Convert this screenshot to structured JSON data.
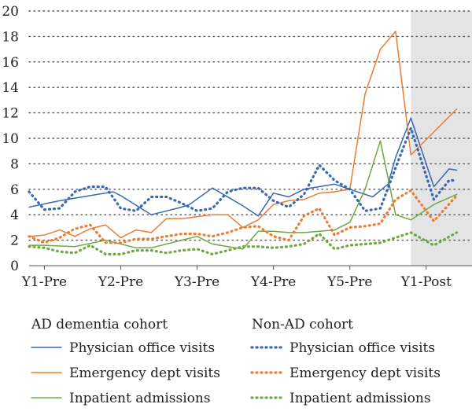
{
  "chart_data": {
    "type": "line",
    "y_ticks": [
      "0",
      "2",
      "4",
      "6",
      "8",
      "10",
      "12",
      "14",
      "16",
      "18",
      "20"
    ],
    "ylim": [
      0,
      20
    ],
    "grid": "horizontal dotted",
    "x_tick_labels": [
      "Y1-Pre",
      "Y2-Pre",
      "Y3-Pre",
      "Y4-Pre",
      "Y5-Pre",
      "Y1-Post"
    ],
    "x_tick_positions": [
      2,
      12,
      22,
      32,
      42,
      52
    ],
    "x_range": [
      0,
      58
    ],
    "shaded_region": [
      50,
      58
    ],
    "legend": {
      "groups": [
        {
          "name": "AD dementia cohort"
        },
        {
          "name": "Non-AD cohort"
        }
      ]
    },
    "series": [
      {
        "name": "Physician office visits",
        "group": "AD dementia cohort",
        "color": "#3a67b4",
        "style": "solid",
        "x": [
          0,
          4,
          8,
          11,
          12,
          16,
          20,
          21,
          24,
          28,
          30,
          32,
          34,
          36,
          40,
          42,
          45,
          47,
          48,
          50,
          53,
          55,
          56
        ],
        "y": [
          4.6,
          5.1,
          5.5,
          5.8,
          5.5,
          4.0,
          4.6,
          4.8,
          6.1,
          4.7,
          3.9,
          5.7,
          5.4,
          6.0,
          6.4,
          6.0,
          5.4,
          6.4,
          8.5,
          11.6,
          6.2,
          7.6,
          7.5
        ]
      },
      {
        "name": "Emergency dept visits",
        "group": "AD dementia cohort",
        "color": "#ec7d31",
        "style": "solid",
        "x": [
          0,
          2,
          4,
          6,
          8,
          10,
          12,
          14,
          16,
          18,
          20,
          24,
          26,
          28,
          30,
          32,
          34,
          36,
          38,
          40,
          42,
          44,
          46,
          48,
          50,
          53,
          56
        ],
        "y": [
          2.3,
          2.4,
          2.8,
          2.3,
          2.9,
          3.2,
          2.2,
          2.8,
          2.6,
          3.7,
          3.7,
          4.0,
          4.0,
          3.0,
          3.6,
          4.8,
          5.1,
          5.2,
          5.7,
          5.8,
          6.0,
          13.5,
          17.0,
          18.4,
          8.7,
          10.5,
          12.3
        ]
      },
      {
        "name": "Inpatient admissions",
        "group": "AD dementia cohort",
        "color": "#6fa842",
        "style": "solid",
        "x": [
          0,
          2,
          6,
          10,
          14,
          16,
          20,
          22,
          24,
          28,
          30,
          32,
          34,
          36,
          40,
          42,
          44,
          46,
          48,
          50,
          53,
          56
        ],
        "y": [
          1.6,
          1.6,
          1.5,
          2.0,
          1.4,
          1.4,
          2.0,
          2.3,
          1.7,
          1.3,
          2.7,
          2.7,
          2.6,
          2.6,
          2.8,
          3.4,
          6.0,
          9.8,
          4.0,
          3.6,
          4.8,
          5.6
        ]
      },
      {
        "name": "Physician office visits",
        "group": "Non-AD cohort",
        "color": "#3a67b4",
        "style": "dotted",
        "x": [
          0,
          2,
          4,
          6,
          8,
          10,
          12,
          14,
          16,
          18,
          20,
          22,
          24,
          26,
          28,
          30,
          32,
          34,
          36,
          38,
          40,
          42,
          44,
          46,
          48,
          50,
          53,
          55,
          56
        ],
        "y": [
          5.8,
          4.4,
          4.5,
          5.8,
          6.2,
          6.2,
          4.5,
          4.3,
          5.4,
          5.4,
          4.9,
          4.3,
          4.5,
          5.8,
          6.1,
          6.1,
          5.1,
          4.6,
          5.6,
          7.9,
          6.7,
          6.0,
          4.3,
          4.5,
          7.7,
          10.8,
          5.2,
          6.7,
          6.7
        ]
      },
      {
        "name": "Emergency dept visits",
        "group": "Non-AD cohort",
        "color": "#ec7d31",
        "style": "dotted",
        "x": [
          0,
          2,
          4,
          6,
          8,
          10,
          12,
          14,
          16,
          18,
          20,
          22,
          24,
          26,
          28,
          30,
          32,
          34,
          36,
          38,
          40,
          42,
          44,
          46,
          48,
          50,
          53,
          56
        ],
        "y": [
          2.3,
          1.8,
          2.2,
          2.9,
          3.2,
          1.8,
          1.8,
          2.1,
          2.1,
          2.3,
          2.5,
          2.5,
          2.3,
          2.6,
          3.0,
          3.1,
          2.3,
          2.0,
          3.9,
          4.5,
          2.4,
          3.0,
          3.1,
          3.3,
          5.2,
          5.9,
          3.5,
          5.5
        ]
      },
      {
        "name": "Inpatient admissions",
        "group": "Non-AD cohort",
        "color": "#6fa842",
        "style": "dotted",
        "x": [
          0,
          2,
          4,
          6,
          8,
          10,
          12,
          14,
          16,
          18,
          20,
          22,
          24,
          26,
          28,
          30,
          32,
          34,
          36,
          38,
          40,
          42,
          44,
          46,
          48,
          50,
          53,
          56
        ],
        "y": [
          1.5,
          1.4,
          1.1,
          1.0,
          1.6,
          0.9,
          0.9,
          1.2,
          1.2,
          1.0,
          1.2,
          1.3,
          0.9,
          1.2,
          1.5,
          1.5,
          1.4,
          1.5,
          1.7,
          2.5,
          1.3,
          1.6,
          1.7,
          1.8,
          2.2,
          2.6,
          1.6,
          2.6
        ]
      }
    ]
  }
}
